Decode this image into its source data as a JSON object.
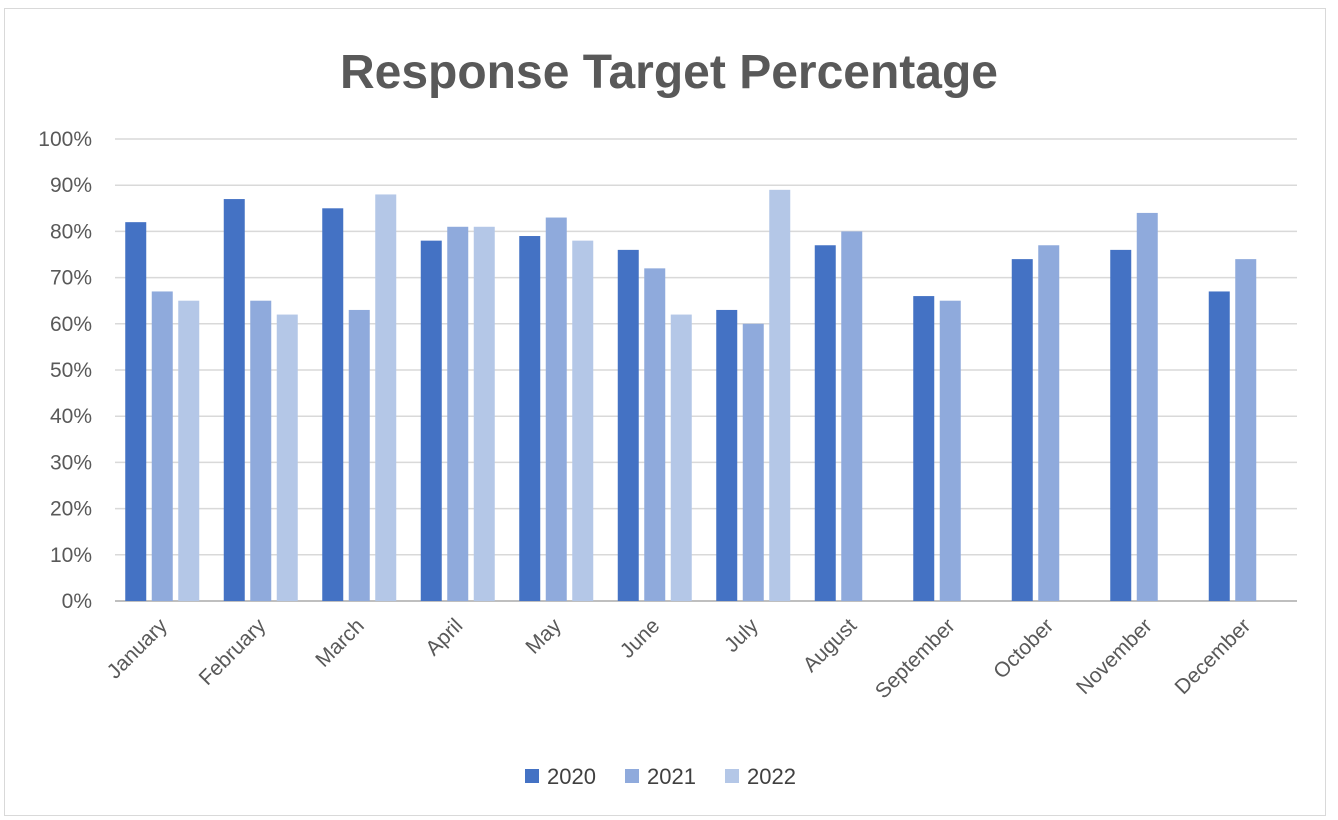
{
  "chart_data": {
    "type": "bar",
    "title": "Response Target Percentage",
    "xlabel": "",
    "ylabel": "",
    "ylim": [
      0,
      100
    ],
    "yticks": [
      "0%",
      "10%",
      "20%",
      "30%",
      "40%",
      "50%",
      "60%",
      "70%",
      "80%",
      "90%",
      "100%"
    ],
    "y_tick_values": [
      0,
      10,
      20,
      30,
      40,
      50,
      60,
      70,
      80,
      90,
      100
    ],
    "grid": true,
    "legend_position": "bottom",
    "categories": [
      "January",
      "February",
      "March",
      "April",
      "May",
      "June",
      "July",
      "August",
      "September",
      "October",
      "November",
      "December"
    ],
    "series": [
      {
        "name": "2020",
        "color": "#4472c4",
        "values": [
          82,
          87,
          85,
          78,
          79,
          76,
          63,
          77,
          66,
          74,
          76,
          67
        ]
      },
      {
        "name": "2021",
        "color": "#8faadc",
        "values": [
          67,
          65,
          63,
          81,
          83,
          72,
          60,
          80,
          65,
          77,
          84,
          74
        ]
      },
      {
        "name": "2022",
        "color": "#b4c7e7",
        "values": [
          65,
          62,
          88,
          81,
          78,
          62,
          89,
          null,
          null,
          null,
          null,
          null
        ]
      }
    ]
  }
}
